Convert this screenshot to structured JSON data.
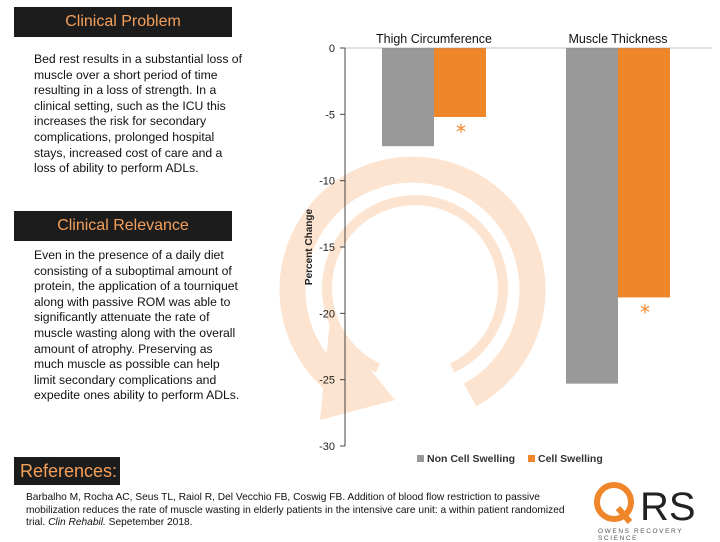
{
  "sections": {
    "problem_title": "Clinical Problem",
    "problem_text": " Bed rest results in a substantial loss of muscle over a short period of time resulting in a loss of strength. In a clinical setting, such as the ICU this increases the risk for secondary complications, prolonged hospital stays, increased cost of care and  a loss of ability to perform ADLs.",
    "relevance_title": "Clinical Relevance",
    "relevance_text": "Even in the presence of a daily diet consisting of a suboptimal amount of protein, the application of a tourniquet along with passive ROM was able to significantly attenuate the rate of muscle wasting along with the overall amount of atrophy. Preserving as much muscle as possible can help limit secondary complications and expedite ones ability to perform ADLs.",
    "references_title": "References:",
    "reference_main": "Barbalho M, Rocha AC, Seus TL, Raiol R, Del Vecchio FB, Coswig FB. Addition of blood flow restriction to passive mobilization reduces the rate of muscle wasting in elderly patients in the intensive care unit: a within patient randomized trial. ",
    "reference_journal": "Clin Rehabil.",
    "reference_date": " Sepetember 2018."
  },
  "logo": {
    "letters": "RS",
    "subtitle": "OWENS RECOVERY SCIENCE"
  },
  "colors": {
    "non_cell": "#999999",
    "cell": "#f0862a",
    "header_bg": "#1c1c1c",
    "header_text": "#f5a05a"
  },
  "chart_data": {
    "type": "bar",
    "categories": [
      "Thigh Circumference",
      "Muscle Thickness"
    ],
    "series": [
      {
        "name": "Non Cell Swelling",
        "values": [
          -7.4,
          -25.3
        ]
      },
      {
        "name": "Cell Swelling",
        "values": [
          -5.2,
          -18.8
        ]
      }
    ],
    "significance_marker": "*",
    "significant": [
      false,
      true
    ],
    "ylabel": "Percent Change",
    "ylim": [
      -30,
      0
    ],
    "yticks": [
      0,
      -5,
      -10,
      -15,
      -20,
      -25,
      -30
    ],
    "legend": "bottom"
  }
}
